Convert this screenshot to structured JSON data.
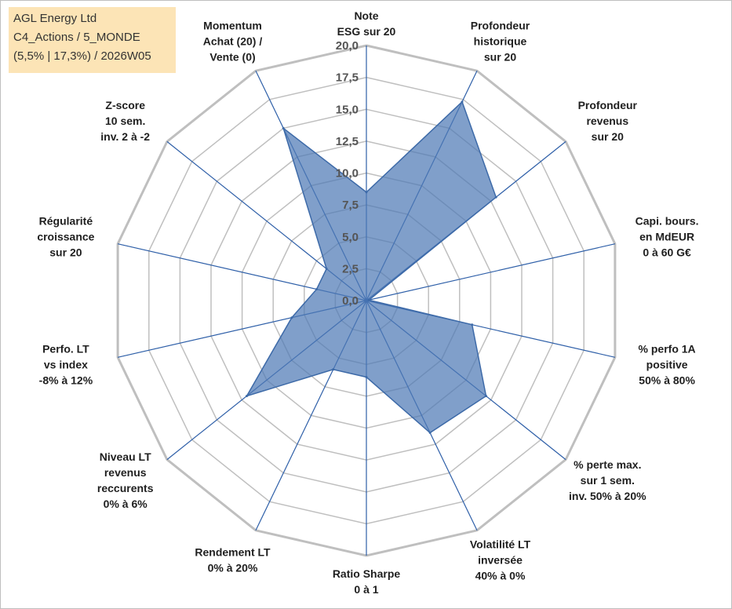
{
  "info_box": {
    "lines": [
      "AGL Energy Ltd",
      "C4_Actions / 5_MONDE",
      "(5,5% | 17,3%) / 2026W05"
    ]
  },
  "colors": {
    "grid": "#bfbfbf",
    "spoke": "#2e5fa8",
    "fill": "#4f7ab5",
    "stroke": "#3d6aa8",
    "info_bg": "#fce4b6"
  },
  "chart_data": {
    "type": "radar",
    "title": "",
    "rmin": 0,
    "rmax": 20,
    "grid_step": 2.5,
    "tick_labels": [
      "0,0",
      "2,5",
      "5,0",
      "7,5",
      "10,0",
      "12,5",
      "15,0",
      "17,5",
      "20,0"
    ],
    "categories": [
      [
        "Note",
        "ESG sur 20"
      ],
      [
        "Profondeur",
        "historique",
        "sur 20"
      ],
      [
        "Profondeur",
        "revenus",
        "sur 20"
      ],
      [
        "Capi. bours.",
        "en MdEUR",
        "0 à 60 G€"
      ],
      [
        "% perfo 1A",
        "positive",
        "50% à 80%"
      ],
      [
        "% perte max.",
        "sur 1 sem.",
        "inv. 50% à 20%"
      ],
      [
        "Volatilité LT",
        "inversée",
        "40% à 0%"
      ],
      [
        "Ratio Sharpe",
        "0 à 1"
      ],
      [
        "Rendement LT",
        "0% à 20%"
      ],
      [
        "Niveau LT",
        "revenus",
        "reccurents",
        "0% à 6%"
      ],
      [
        "Perfo. LT",
        "vs index",
        "-8% à 12%"
      ],
      [
        "Régularité",
        "croissance",
        "sur 20"
      ],
      [
        "Z-score",
        "10 sem.",
        "inv. 2 à -2"
      ],
      [
        "Momentum",
        "Achat (20) /",
        "Vente (0)"
      ]
    ],
    "series": [
      {
        "values": [
          8.5,
          17.3,
          13.0,
          0.2,
          8.5,
          12.0,
          11.5,
          6.0,
          6.0,
          12.0,
          6.0,
          4.0,
          4.0,
          15.0
        ]
      }
    ]
  }
}
